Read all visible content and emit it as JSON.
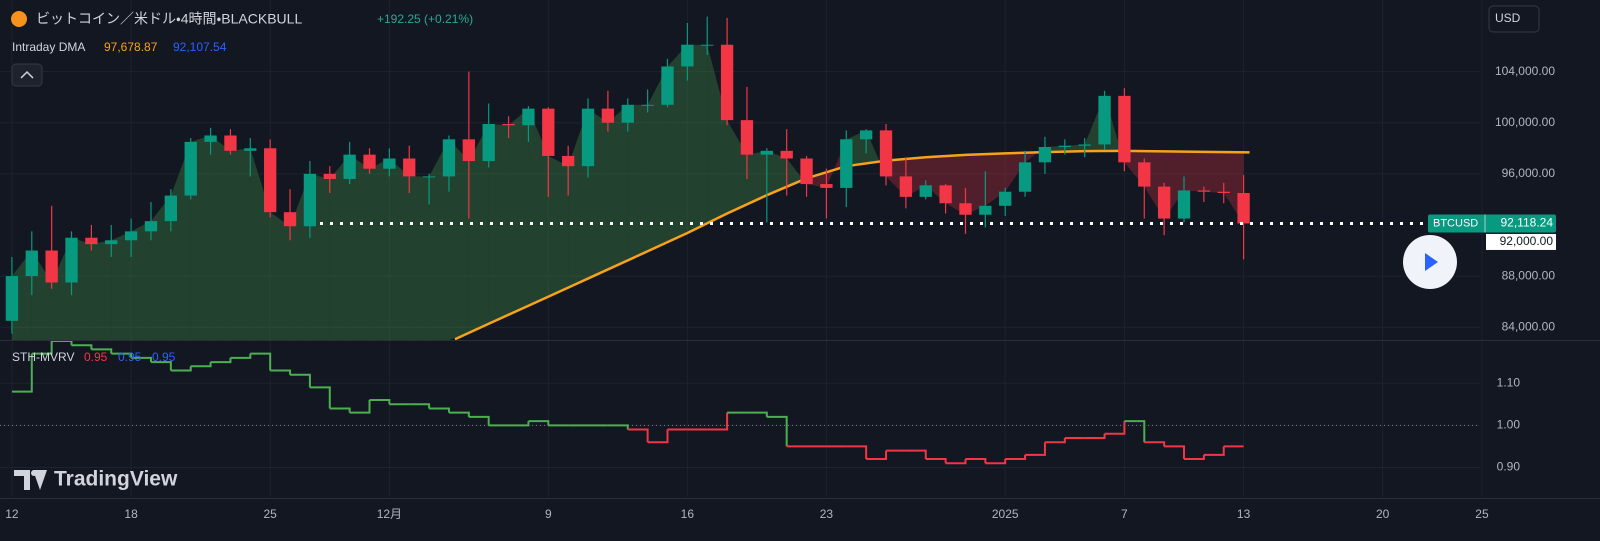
{
  "header": {
    "title": "ビットコイン／米ドル・4時間・BLACKBULL",
    "change": "+192.25 (+0.21%)",
    "currency": "USD"
  },
  "branding": "TradingView",
  "chart_data": [
    {
      "type": "candlestick",
      "x": [
        0,
        1,
        2,
        3,
        4,
        5,
        6,
        7,
        8,
        9,
        10,
        11,
        12,
        13,
        14,
        15,
        16,
        17,
        18,
        19,
        20,
        21,
        22,
        23,
        24,
        25,
        26,
        27,
        28,
        29,
        30,
        31,
        32,
        33,
        34,
        35,
        36,
        37,
        38,
        39,
        40,
        41,
        42,
        43,
        44,
        45,
        46,
        47,
        48,
        49,
        50,
        51,
        52,
        53,
        54,
        55,
        56,
        57,
        58,
        59,
        60,
        61,
        62
      ],
      "open": [
        84500,
        88000,
        90000,
        87500,
        91000,
        90500,
        90800,
        91500,
        92300,
        94300,
        98500,
        99000,
        97800,
        98000,
        93000,
        91900,
        96000,
        95600,
        97500,
        96400,
        97200,
        95800,
        95800,
        98700,
        97000,
        99900,
        99800,
        101100,
        97400,
        96600,
        101100,
        100000,
        101400,
        101400,
        104400,
        106100,
        106100,
        100200,
        97500,
        97800,
        97200,
        95200,
        94900,
        98700,
        99400,
        95800,
        94200,
        95100,
        93700,
        92800,
        93500,
        94600,
        96900,
        98100,
        98200,
        98300,
        102100,
        96900,
        95000,
        92500,
        94700,
        94600,
        94500
      ],
      "high": [
        89500,
        91500,
        93500,
        91500,
        92000,
        92000,
        92500,
        93800,
        94800,
        98800,
        99600,
        99500,
        98800,
        98700,
        94800,
        97000,
        96600,
        98500,
        98000,
        98000,
        98200,
        96000,
        99000,
        104000,
        101500,
        100500,
        101300,
        101200,
        98200,
        101900,
        102500,
        101900,
        102600,
        105000,
        107800,
        108300,
        108200,
        102800,
        98000,
        99500,
        97400,
        96400,
        99400,
        99500,
        99900,
        97300,
        95500,
        95200,
        94900,
        96200,
        94900,
        97800,
        98900,
        98700,
        98800,
        102500,
        102700,
        97200,
        95300,
        95800,
        95000,
        95300,
        95900
      ],
      "low": [
        83500,
        86500,
        87000,
        86500,
        90000,
        89500,
        89500,
        90800,
        91500,
        94000,
        97500,
        97500,
        95800,
        92600,
        90800,
        91000,
        94500,
        95200,
        96000,
        95800,
        94500,
        93600,
        94600,
        92500,
        96500,
        98800,
        98500,
        94200,
        94300,
        95700,
        99300,
        99300,
        100800,
        101200,
        103300,
        105300,
        99800,
        95600,
        92200,
        94300,
        94200,
        92500,
        93400,
        97600,
        95100,
        93300,
        94000,
        92900,
        91300,
        91800,
        92700,
        94200,
        96000,
        97500,
        97300,
        97900,
        96200,
        92500,
        91200,
        92200,
        93800,
        93700,
        89300
      ],
      "close": [
        88000,
        90000,
        87500,
        91000,
        90500,
        90800,
        91500,
        92300,
        94300,
        98500,
        99000,
        97800,
        98000,
        93000,
        91900,
        96000,
        95600,
        97500,
        96400,
        97200,
        95800,
        95800,
        98700,
        97000,
        99900,
        99800,
        101100,
        97400,
        96600,
        101100,
        100000,
        101400,
        101400,
        104400,
        106100,
        106100,
        100200,
        97500,
        97800,
        97200,
        95200,
        94900,
        98700,
        99400,
        95800,
        94200,
        95100,
        93700,
        92800,
        93500,
        94600,
        96900,
        98100,
        98200,
        98300,
        102100,
        96900,
        95000,
        92500,
        94700,
        94600,
        94500,
        92118.24
      ],
      "up_color": "#089981",
      "down_color": "#f23645",
      "fill_up": "#4caf50",
      "fill_down": "#f23645",
      "xlim": [
        -0.6,
        73.9
      ],
      "xticks": [
        {
          "value": 0,
          "label": "12"
        },
        {
          "value": 6,
          "label": "18"
        },
        {
          "value": 13,
          "label": "25"
        },
        {
          "value": 19,
          "label": "12月"
        },
        {
          "value": 27,
          "label": "9"
        },
        {
          "value": 34,
          "label": "16"
        },
        {
          "value": 41,
          "label": "23"
        },
        {
          "value": 50,
          "label": "2025"
        },
        {
          "value": 56,
          "label": "7"
        },
        {
          "value": 62,
          "label": "13"
        },
        {
          "value": 69,
          "label": "20"
        },
        {
          "value": 74,
          "label": "25"
        }
      ],
      "ylim": [
        83000,
        109600
      ],
      "yticks": [
        {
          "value": 84000,
          "label": "84,000.00"
        },
        {
          "value": 88000,
          "label": "88,000.00"
        },
        {
          "value": 96000,
          "label": "96,000.00"
        },
        {
          "value": 100000,
          "label": "100,000.00"
        },
        {
          "value": 104000,
          "label": "104,000.00"
        }
      ],
      "grid": true,
      "series": [
        {
          "name": "Intraday DMA",
          "color": "#f7a21b",
          "x": [
            22.3,
            24,
            26,
            28,
            30,
            32,
            34,
            36,
            38,
            40,
            42,
            44,
            46,
            48,
            50,
            52,
            54,
            56,
            58,
            60,
            62.3
          ],
          "values": [
            83060,
            84270,
            85680,
            87100,
            88520,
            89940,
            91370,
            92900,
            94330,
            95650,
            96600,
            97030,
            97300,
            97480,
            97600,
            97700,
            97780,
            97800,
            97760,
            97720,
            97679
          ]
        }
      ],
      "legend_values": [
        {
          "text": "97,678.87",
          "color": "#f7a21b"
        },
        {
          "text": "92,107.54",
          "color": "#2962ff"
        }
      ],
      "last_price": {
        "name": "BTCUSD",
        "value": 92118.24,
        "label": "92,118.24",
        "color": "#089981"
      },
      "crosshair": {
        "value": 92000,
        "label": "92,000.00"
      }
    },
    {
      "type": "step-line",
      "title": "STH-MVRV",
      "legend_values": [
        {
          "text": "0.95",
          "color": "#f23645"
        },
        {
          "text": "0.95",
          "color": "#2962ff"
        },
        {
          "text": "0.95",
          "color": "#2962ff"
        }
      ],
      "x": [
        0,
        1,
        2,
        3,
        4,
        5,
        6,
        7,
        8,
        9,
        10,
        11,
        12,
        13,
        14,
        15,
        16,
        17,
        18,
        19,
        20,
        21,
        22,
        23,
        24,
        25,
        26,
        27,
        28,
        29,
        30,
        31,
        32,
        33,
        34,
        35,
        36,
        37,
        38,
        39,
        40,
        41,
        42,
        43,
        44,
        45,
        46,
        47,
        48,
        49,
        50,
        51,
        52,
        53,
        54,
        55,
        56,
        57,
        58,
        59,
        60,
        61,
        62
      ],
      "values": [
        1.08,
        1.17,
        1.2,
        1.19,
        1.18,
        1.17,
        1.16,
        1.15,
        1.13,
        1.14,
        1.15,
        1.16,
        1.17,
        1.13,
        1.12,
        1.09,
        1.04,
        1.03,
        1.06,
        1.05,
        1.05,
        1.04,
        1.03,
        1.02,
        1.0,
        1.0,
        1.01,
        1.0,
        1.0,
        1.0,
        1.0,
        0.99,
        0.96,
        0.99,
        0.99,
        0.99,
        1.03,
        1.03,
        1.02,
        0.95,
        0.95,
        0.95,
        0.95,
        0.92,
        0.94,
        0.94,
        0.92,
        0.91,
        0.92,
        0.91,
        0.92,
        0.93,
        0.96,
        0.97,
        0.97,
        0.98,
        1.01,
        0.96,
        0.95,
        0.92,
        0.93,
        0.95,
        0.95
      ],
      "baseline": 1.0,
      "color_above": "#4caf50",
      "color_below": "#f23645",
      "xlim": [
        -0.6,
        73.9
      ],
      "ylim": [
        0.83,
        1.2
      ],
      "yticks": [
        {
          "value": 0.9,
          "label": "0.90"
        },
        {
          "value": 1.0,
          "label": "1.00"
        },
        {
          "value": 1.1,
          "label": "1.10"
        }
      ]
    }
  ]
}
